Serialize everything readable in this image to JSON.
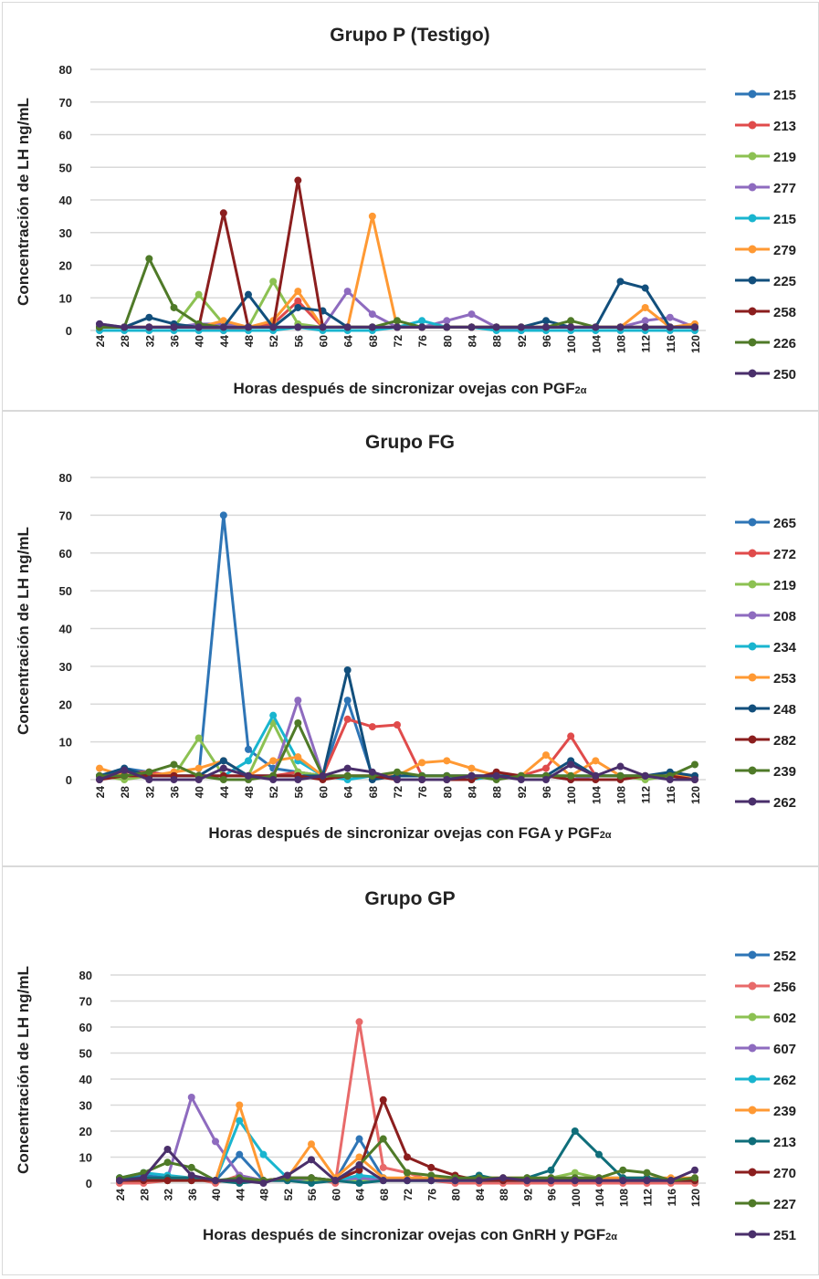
{
  "chart_data": [
    {
      "type": "line",
      "title": "Grupo P (Testigo)",
      "ylabel": "Concentración de LH ng/mL",
      "xlabel": "Horas después de sincronizar ovejas con PGF",
      "xlabel_sub": "2α",
      "ylim": [
        0,
        80
      ],
      "yticks": [
        0,
        10,
        20,
        30,
        40,
        50,
        60,
        70,
        80
      ],
      "grid": true,
      "legend": "right",
      "x": [
        24,
        28,
        32,
        36,
        40,
        44,
        48,
        52,
        56,
        60,
        64,
        68,
        72,
        76,
        80,
        84,
        88,
        92,
        96,
        100,
        104,
        108,
        112,
        116,
        120
      ],
      "series": [
        {
          "name": "215",
          "color": "#2e75b6",
          "values": [
            1,
            1,
            1,
            1,
            1,
            1,
            1,
            1,
            1,
            1,
            1,
            1,
            1,
            1,
            1,
            1,
            1,
            1,
            1,
            1,
            1,
            1,
            1,
            1,
            1
          ]
        },
        {
          "name": "213",
          "color": "#e04b4b",
          "values": [
            1,
            1,
            1,
            1,
            1,
            0,
            1,
            2,
            9,
            1,
            1,
            1,
            1,
            1,
            1,
            1,
            1,
            1,
            1,
            1,
            1,
            1,
            1,
            1,
            1
          ]
        },
        {
          "name": "219",
          "color": "#8cc152",
          "values": [
            1,
            1,
            1,
            1,
            11,
            2,
            1,
            15,
            2,
            1,
            1,
            1,
            1,
            1,
            1,
            1,
            1,
            1,
            1,
            1,
            1,
            1,
            1,
            1,
            1
          ]
        },
        {
          "name": "277",
          "color": "#8e6bbf",
          "values": [
            2,
            1,
            1,
            1,
            2,
            2,
            1,
            1,
            1,
            1,
            12,
            5,
            1,
            1,
            3,
            5,
            1,
            0,
            1,
            1,
            1,
            1,
            3,
            4,
            1
          ]
        },
        {
          "name": "215",
          "color": "#19b5cf",
          "values": [
            0,
            0,
            0,
            0,
            0,
            0,
            0,
            0,
            1,
            0,
            0,
            0,
            1,
            3,
            1,
            1,
            0,
            0,
            0,
            0,
            0,
            0,
            0,
            0,
            0
          ]
        },
        {
          "name": "279",
          "color": "#ff9933",
          "values": [
            1,
            1,
            1,
            1,
            1,
            3,
            1,
            3,
            12,
            1,
            1,
            35,
            1,
            1,
            1,
            1,
            1,
            1,
            1,
            1,
            1,
            1,
            7,
            1,
            2
          ]
        },
        {
          "name": "225",
          "color": "#124f7c",
          "values": [
            1,
            1,
            4,
            2,
            1,
            1,
            11,
            1,
            7,
            6,
            1,
            1,
            1,
            1,
            1,
            1,
            1,
            1,
            3,
            1,
            1,
            15,
            13,
            1,
            1
          ]
        },
        {
          "name": "258",
          "color": "#8b1e1e",
          "values": [
            1,
            1,
            1,
            1,
            1,
            36,
            1,
            1,
            46,
            1,
            1,
            1,
            1,
            1,
            1,
            1,
            1,
            1,
            1,
            1,
            1,
            1,
            1,
            1,
            1
          ]
        },
        {
          "name": "226",
          "color": "#4f7a28",
          "values": [
            1,
            1,
            22,
            7,
            2,
            1,
            1,
            1,
            1,
            1,
            1,
            1,
            3,
            1,
            1,
            1,
            1,
            1,
            1,
            3,
            1,
            1,
            1,
            1,
            1
          ]
        },
        {
          "name": "250",
          "color": "#4a2f6b",
          "values": [
            2,
            1,
            1,
            1,
            1,
            1,
            1,
            1,
            1,
            1,
            1,
            1,
            1,
            1,
            1,
            1,
            1,
            1,
            1,
            1,
            1,
            1,
            1,
            1,
            1
          ]
        }
      ]
    },
    {
      "type": "line",
      "title": "Grupo FG",
      "ylabel": "Concentración de LH ng/mL",
      "xlabel": "Horas después de sincronizar ovejas con FGA y PGF",
      "xlabel_sub": "2α",
      "ylim": [
        0,
        80
      ],
      "yticks": [
        0,
        10,
        20,
        30,
        40,
        50,
        60,
        70,
        80
      ],
      "grid": true,
      "legend": "right",
      "x": [
        24,
        28,
        32,
        36,
        40,
        44,
        48,
        52,
        56,
        60,
        64,
        68,
        72,
        76,
        80,
        84,
        88,
        92,
        96,
        100,
        104,
        108,
        112,
        116,
        120
      ],
      "series": [
        {
          "name": "265",
          "color": "#2e75b6",
          "values": [
            1,
            3,
            2,
            1,
            1,
            70,
            8,
            3,
            2,
            1,
            21,
            1,
            1,
            1,
            1,
            1,
            1,
            1,
            1,
            1,
            1,
            1,
            1,
            1,
            1
          ]
        },
        {
          "name": "272",
          "color": "#e04b4b",
          "values": [
            1,
            2,
            2,
            1,
            1,
            1,
            1,
            1,
            2,
            1,
            16,
            14,
            14.5,
            1,
            1,
            1,
            1,
            1,
            3,
            11.5,
            1,
            1,
            1,
            1,
            1
          ]
        },
        {
          "name": "219",
          "color": "#8cc152",
          "values": [
            1,
            0,
            1,
            1,
            11,
            1,
            1,
            15,
            2,
            1,
            1,
            1,
            1,
            1,
            1,
            1,
            1,
            1,
            1,
            1,
            1,
            1,
            0,
            1,
            1
          ]
        },
        {
          "name": "208",
          "color": "#8e6bbf",
          "values": [
            1,
            1,
            1,
            1,
            1,
            1,
            1,
            1,
            21,
            1,
            1,
            1,
            1,
            1,
            1,
            1,
            1,
            1,
            1,
            0,
            1,
            1,
            1,
            1,
            1
          ]
        },
        {
          "name": "234",
          "color": "#19b5cf",
          "values": [
            1,
            1,
            1,
            1,
            1,
            1,
            5,
            17,
            5,
            1,
            0,
            1,
            1,
            1,
            1,
            0,
            1,
            1,
            1,
            1,
            1,
            1,
            1,
            1,
            1
          ]
        },
        {
          "name": "253",
          "color": "#ff9933",
          "values": [
            3,
            1,
            1,
            2,
            3,
            5,
            1,
            5,
            6,
            1,
            1,
            1,
            1,
            4.5,
            5,
            3,
            1,
            1,
            6.5,
            1,
            5,
            1,
            1,
            1,
            1
          ]
        },
        {
          "name": "248",
          "color": "#124f7c",
          "values": [
            1,
            3,
            1,
            1,
            1,
            5,
            1,
            1,
            1,
            1,
            29,
            0,
            1,
            1,
            1,
            1,
            1,
            1,
            1,
            5,
            1,
            1,
            1,
            2,
            1
          ]
        },
        {
          "name": "282",
          "color": "#8b1e1e",
          "values": [
            0,
            1,
            1,
            1,
            1,
            1,
            1,
            1,
            1,
            0,
            1,
            1,
            0,
            0,
            0,
            0,
            2,
            1,
            1,
            0,
            0,
            0,
            1,
            1,
            0
          ]
        },
        {
          "name": "239",
          "color": "#4f7a28",
          "values": [
            1,
            1,
            2,
            4,
            1,
            0,
            0,
            1,
            15,
            1,
            1,
            1,
            2,
            1,
            1,
            1,
            0,
            1,
            1,
            1,
            1,
            1,
            1,
            1,
            4
          ]
        },
        {
          "name": "262",
          "color": "#4a2f6b",
          "values": [
            0,
            2.5,
            0,
            0,
            0,
            3,
            1,
            0,
            0,
            1,
            3,
            2,
            0,
            0,
            0,
            1,
            1,
            0,
            0,
            4,
            1,
            3.5,
            1,
            0,
            0
          ]
        }
      ]
    },
    {
      "type": "line",
      "title": "Grupo GP",
      "ylabel": "Concentración de LH ng/mL",
      "xlabel": "Horas después de sincronizar ovejas con GnRH y PGF",
      "xlabel_sub": "2α",
      "ylim": [
        0,
        80
      ],
      "yticks": [
        0,
        10,
        20,
        30,
        40,
        50,
        60,
        70,
        80
      ],
      "grid": true,
      "legend": "right",
      "x": [
        24,
        28,
        32,
        36,
        40,
        44,
        48,
        52,
        56,
        60,
        64,
        68,
        72,
        76,
        80,
        84,
        88,
        92,
        96,
        100,
        104,
        108,
        112,
        116,
        120
      ],
      "series": [
        {
          "name": "252",
          "color": "#2e75b6",
          "values": [
            1,
            3,
            2,
            1,
            1,
            11,
            1,
            1,
            1,
            1,
            17,
            2,
            1,
            1,
            1,
            1,
            1,
            1,
            1,
            1,
            1,
            1,
            1,
            1,
            1
          ]
        },
        {
          "name": "256",
          "color": "#e86a6a",
          "values": [
            0,
            0,
            1,
            2,
            0,
            3,
            1,
            2,
            2,
            0,
            62,
            6,
            4,
            1,
            0,
            0,
            0,
            0,
            0,
            0,
            0,
            0,
            0,
            0,
            0
          ]
        },
        {
          "name": "602",
          "color": "#8cc152",
          "values": [
            1,
            1,
            1,
            1,
            1,
            1,
            1,
            1,
            1,
            1,
            1,
            1,
            1,
            1,
            1,
            1,
            1,
            1,
            2,
            4,
            2,
            1,
            1,
            1,
            1
          ]
        },
        {
          "name": "607",
          "color": "#8e6bbf",
          "values": [
            1,
            1,
            2,
            33,
            16,
            3,
            1,
            1,
            2,
            1,
            2,
            1,
            1,
            1,
            1,
            1,
            1,
            1,
            1,
            1,
            1,
            1,
            1,
            1,
            1
          ]
        },
        {
          "name": "262",
          "color": "#19b5cf",
          "values": [
            2,
            4,
            3,
            2,
            1,
            24,
            11,
            2,
            2,
            1,
            3,
            2,
            1,
            1,
            1,
            1,
            1,
            1,
            2,
            2,
            2,
            2,
            2,
            1,
            1
          ]
        },
        {
          "name": "239",
          "color": "#ff9933",
          "values": [
            1,
            1,
            2,
            2,
            1,
            30,
            1,
            2,
            15,
            2,
            10,
            2,
            2,
            2,
            2,
            2,
            2,
            2,
            2,
            2,
            2,
            2,
            2,
            2,
            2
          ]
        },
        {
          "name": "213",
          "color": "#0f6e7a",
          "values": [
            2,
            2,
            2,
            2,
            1,
            0,
            1,
            1,
            0,
            1,
            0,
            1,
            1,
            1,
            1,
            3,
            1,
            2,
            5,
            20,
            11,
            2,
            2,
            1,
            1
          ]
        },
        {
          "name": "270",
          "color": "#8b1e1e",
          "values": [
            1,
            1,
            1,
            1,
            1,
            1,
            1,
            2,
            2,
            1,
            5,
            32,
            10,
            6,
            3,
            1,
            1,
            1,
            1,
            1,
            1,
            1,
            1,
            1,
            1
          ]
        },
        {
          "name": "227",
          "color": "#4f7a28",
          "values": [
            2,
            4,
            8,
            6,
            1,
            2,
            1,
            2,
            2,
            1,
            7,
            17,
            4,
            3,
            2,
            2,
            2,
            2,
            2,
            2,
            2,
            5,
            4,
            1,
            2
          ]
        },
        {
          "name": "251",
          "color": "#4a2f6b",
          "values": [
            1,
            2,
            13,
            3,
            1,
            1,
            0,
            3,
            9,
            1,
            7,
            1,
            1,
            1,
            1,
            1,
            2,
            1,
            1,
            1,
            1,
            1,
            1,
            1,
            5
          ]
        }
      ]
    }
  ]
}
